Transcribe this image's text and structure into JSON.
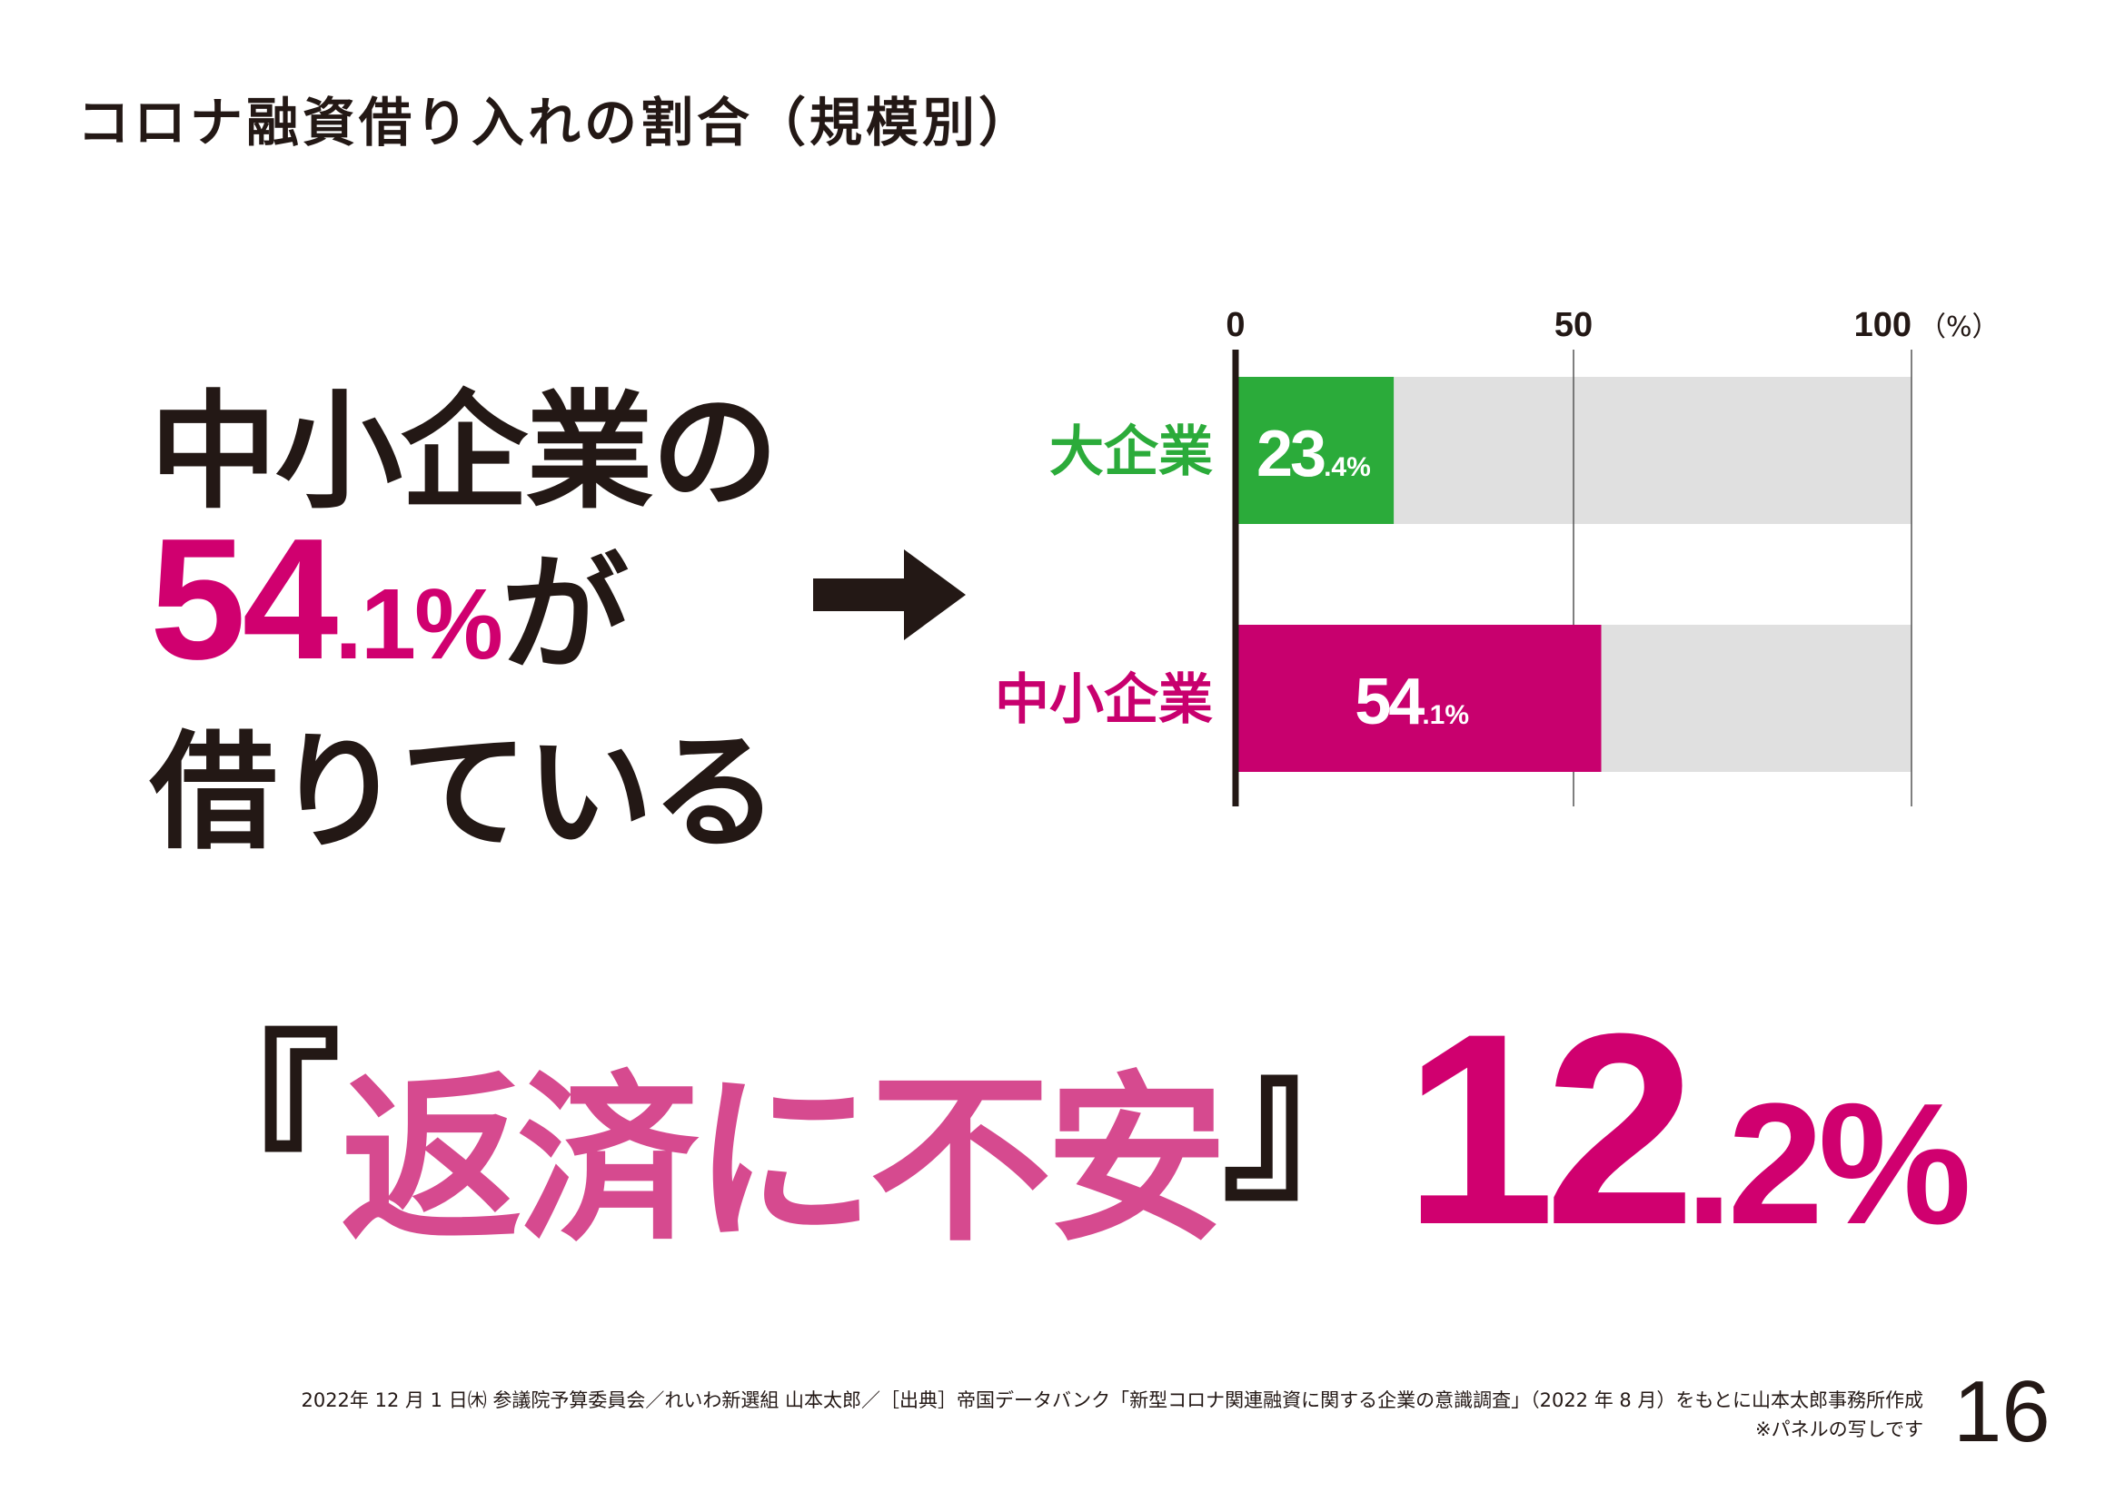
{
  "title": "コロナ融資借り入れの割合（規模別）",
  "headline": {
    "line1": "中小企業の",
    "value_int": "54",
    "value_dec": ".1%",
    "line2_suffix": "が",
    "line3": "借りている"
  },
  "bottom": {
    "open_quote": "『",
    "phrase": "返済に不安",
    "close_quote": "』",
    "value_int": "12",
    "value_dec": ".2%"
  },
  "footer": {
    "line1": "2022年 12 月 1 日㈭ 参議院予算委員会／れいわ新選組 山本太郎／［出典］帝国データバンク「新型コロナ関連融資に関する企業の意識調査」（2022 年 8 月）をもとに山本太郎事務所作成",
    "line2": "※パネルの写しです"
  },
  "page_number": "16",
  "colors": {
    "green": "#2bab3a",
    "magenta": "#c8006e",
    "track": "#e0e0e0",
    "text": "#231815",
    "pink_text": "#d64a8f"
  },
  "chart_data": {
    "type": "bar",
    "orientation": "horizontal",
    "categories": [
      "大企業",
      "中小企業"
    ],
    "values": [
      23.4,
      54.1
    ],
    "value_labels": [
      {
        "int": "23",
        "dec": ".4%"
      },
      {
        "int": "54",
        "dec": ".1%"
      }
    ],
    "xlim": [
      0,
      100
    ],
    "ticks": [
      "0",
      "50",
      "100"
    ],
    "unit": "（%）",
    "grid": true
  }
}
